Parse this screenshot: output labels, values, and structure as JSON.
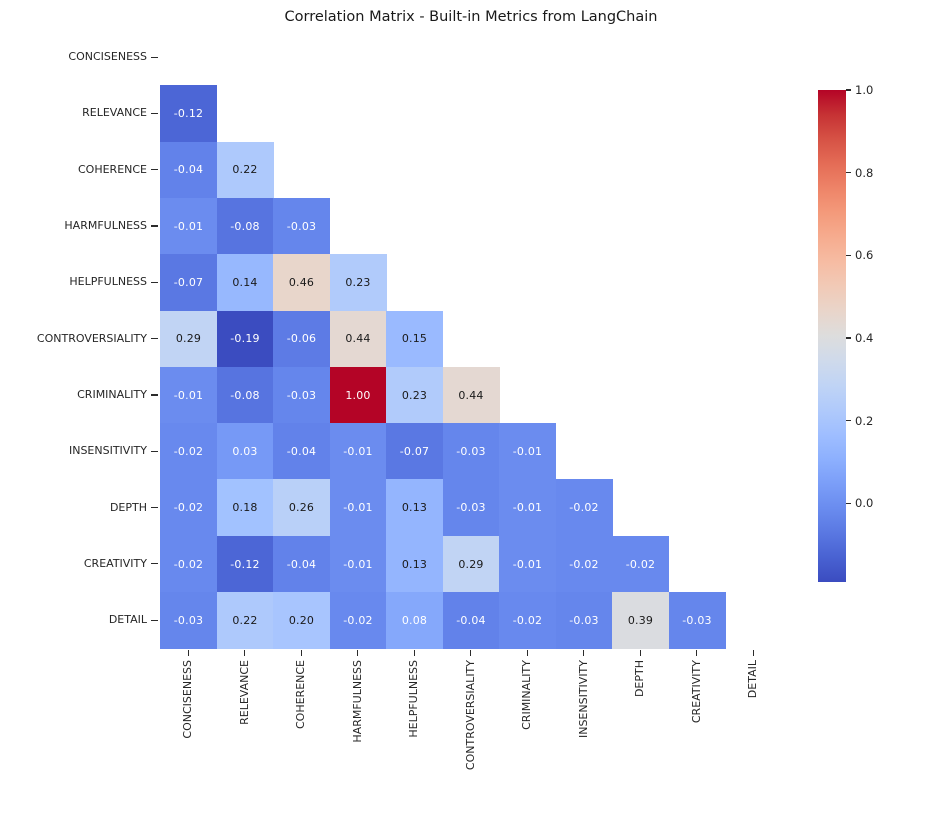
{
  "title": "Correlation Matrix - Built-in Metrics from LangChain",
  "chart_data": {
    "type": "heatmap",
    "title": "Correlation Matrix - Built-in Metrics from LangChain",
    "categories": [
      "CONCISENESS",
      "RELEVANCE",
      "COHERENCE",
      "HARMFULNESS",
      "HELPFULNESS",
      "CONTROVERSIALITY",
      "CRIMINALITY",
      "INSENSITIVITY",
      "DEPTH",
      "CREATIVITY",
      "DETAIL"
    ],
    "mask": "upper triangle and diagonal hidden (lower-triangle correlation matrix)",
    "matrix_lower_triangle": [
      [],
      [
        -0.12
      ],
      [
        -0.04,
        0.22
      ],
      [
        -0.01,
        -0.08,
        -0.03
      ],
      [
        -0.07,
        0.14,
        0.46,
        0.23
      ],
      [
        0.29,
        -0.19,
        -0.06,
        0.44,
        0.15
      ],
      [
        -0.01,
        -0.08,
        -0.03,
        1.0,
        0.23,
        0.44
      ],
      [
        -0.02,
        0.03,
        -0.04,
        -0.01,
        -0.07,
        -0.03,
        -0.01
      ],
      [
        -0.02,
        0.18,
        0.26,
        -0.01,
        0.13,
        -0.03,
        -0.01,
        -0.02
      ],
      [
        -0.02,
        -0.12,
        -0.04,
        -0.01,
        0.13,
        0.29,
        -0.01,
        -0.02,
        -0.02
      ],
      [
        -0.03,
        0.22,
        0.2,
        -0.02,
        0.08,
        -0.04,
        -0.02,
        -0.03,
        0.39,
        -0.03
      ]
    ],
    "annotation_decimals": 2,
    "vmin": -0.19,
    "vmax": 1.0,
    "grid": false,
    "legend_position": "colorbar-right",
    "colormap": {
      "name": "coolwarm",
      "stops": [
        [
          0.0,
          "#3B4CC0"
        ],
        [
          0.0625,
          "#4D68D7"
        ],
        [
          0.125,
          "#6282EA"
        ],
        [
          0.1875,
          "#779AF7"
        ],
        [
          0.25,
          "#8DB0FE"
        ],
        [
          0.3125,
          "#A3C2FF"
        ],
        [
          0.375,
          "#B8D0F9"
        ],
        [
          0.4375,
          "#CCD9EE"
        ],
        [
          0.5,
          "#DDDDDD"
        ],
        [
          0.5625,
          "#ECD3C5"
        ],
        [
          0.625,
          "#F5C4AD"
        ],
        [
          0.6875,
          "#F7B194"
        ],
        [
          0.75,
          "#F49A7B"
        ],
        [
          0.8125,
          "#EC7F63"
        ],
        [
          0.875,
          "#DE604D"
        ],
        [
          0.9375,
          "#CB3E38"
        ],
        [
          1.0,
          "#B40426"
        ]
      ]
    },
    "colorbar": {
      "tick_labels": [
        "1.0",
        "0.8",
        "0.6",
        "0.4",
        "0.2",
        "0.0"
      ],
      "tick_values": [
        1.0,
        0.8,
        0.6,
        0.4,
        0.2,
        0.0
      ]
    },
    "annotation_text_colors": {
      "on_dark": "#FFFFFF",
      "on_light": "#1A1A1A"
    },
    "background_color": "#FFFFFF",
    "axis_text_color": "#262626"
  }
}
